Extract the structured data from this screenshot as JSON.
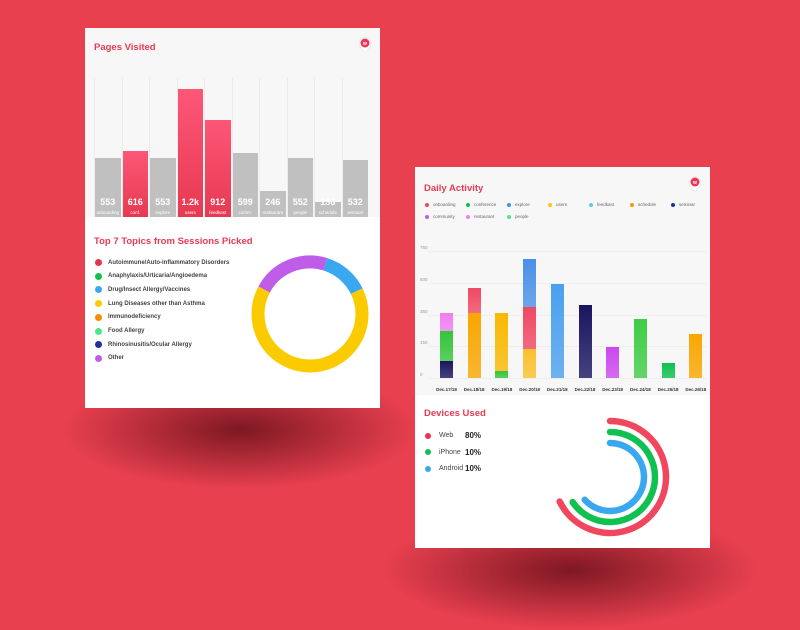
{
  "colors": {
    "accent": "#ea3a53",
    "bg": "#e9404f"
  },
  "pages_visited": {
    "title": "Pages Visited",
    "highlight_color": "#f04862",
    "bars": [
      {
        "value": 553,
        "display": "553",
        "label": "onboarding",
        "hl": false
      },
      {
        "value": 616,
        "display": "616",
        "label": "conf.",
        "hl": true
      },
      {
        "value": 553,
        "display": "553",
        "label": "explore",
        "hl": false
      },
      {
        "value": 1200,
        "display": "1.2k",
        "label": "users",
        "hl": true
      },
      {
        "value": 912,
        "display": "912",
        "label": "feedkast",
        "hl": true
      },
      {
        "value": 599,
        "display": "599",
        "label": "comm.",
        "hl": false
      },
      {
        "value": 246,
        "display": "246",
        "label": "restaurant",
        "hl": false
      },
      {
        "value": 552,
        "display": "552",
        "label": "people",
        "hl": false
      },
      {
        "value": 136,
        "display": "136",
        "label": "schedule",
        "hl": false
      },
      {
        "value": 532,
        "display": "532",
        "label": "seminar",
        "hl": false
      }
    ]
  },
  "topics": {
    "title": "Top 7 Topics from Sessions Picked",
    "items": [
      {
        "label": "Autoimmune/Auto-inflammatory Disorders",
        "color": "#e8344e"
      },
      {
        "label": "Anaphylaxis/Urticaria/Angioedema",
        "color": "#13c04e"
      },
      {
        "label": "Drug/Insect Allergy/Vaccines",
        "color": "#3aa8f0"
      },
      {
        "label": "Lung Diseases other than Asthma",
        "color": "#fbcb00"
      },
      {
        "label": "Immunodeficiency",
        "color": "#f88c00"
      },
      {
        "label": "Food Allergy",
        "color": "#4de58e"
      },
      {
        "label": "Rhinosinusitis/Ocular Allergy",
        "color": "#1f2f9c"
      },
      {
        "label": "Other",
        "color": "#bf5de8"
      }
    ]
  },
  "chart_data": [
    {
      "type": "donut",
      "title": "Top 7 Topics from Sessions Picked",
      "slices": [
        {
          "name": "Other",
          "value": 22,
          "color": "#bf5de8"
        },
        {
          "name": "Drug/Insect Allergy/Vaccines",
          "value": 13,
          "color": "#3aa8f0"
        },
        {
          "name": "Lung Diseases other than Asthma",
          "value": 65,
          "color": "#fbcb00"
        }
      ]
    },
    {
      "type": "bar",
      "stacked": true,
      "title": "Daily Activity",
      "yticks": [
        "0",
        "150",
        "350",
        "500",
        "750"
      ],
      "ylim": [
        0,
        750
      ],
      "categories": [
        "Dec.17/18",
        "Dec.18/18",
        "Dec.19/18",
        "Dec.20/18",
        "Dec.21/18",
        "Dec.22/18",
        "Dec.23/18",
        "Dec.24/18",
        "Dec.25/18",
        "Dec.26/18"
      ],
      "stacks": [
        [
          {
            "s": "seminar",
            "v": 100,
            "c": "#1a1560"
          },
          {
            "s": "conference",
            "v": 177,
            "c": "#34c43a"
          },
          {
            "s": "restaurant",
            "v": 106,
            "c": "#f07ef0"
          }
        ],
        [
          {
            "s": "schedule",
            "v": 384,
            "c": "#f9a600"
          },
          {
            "s": "onboarding",
            "v": 148,
            "c": "#f04862"
          }
        ],
        [
          {
            "s": "conference",
            "v": 41,
            "c": "#34c43a"
          },
          {
            "s": "users",
            "v": 343,
            "c": "#f9b800"
          }
        ],
        [
          {
            "s": "users",
            "v": 171,
            "c": "#fbc02d"
          },
          {
            "s": "onboarding",
            "v": 248,
            "c": "#f04862"
          },
          {
            "s": "explore",
            "v": 283,
            "c": "#4a90e8"
          }
        ],
        [
          {
            "s": "feedkast",
            "v": 555,
            "c": "#4aa0ef"
          }
        ],
        [
          {
            "s": "seminar",
            "v": 431,
            "c": "#1a1560"
          }
        ],
        [
          {
            "s": "community",
            "v": 183,
            "c": "#cc48ee"
          }
        ],
        [
          {
            "s": "conference",
            "v": 348,
            "c": "#40cc45"
          }
        ],
        [
          {
            "s": "conference",
            "v": 89,
            "c": "#0fc050"
          }
        ],
        [
          {
            "s": "schedule",
            "v": 260,
            "c": "#f9a600"
          }
        ]
      ]
    },
    {
      "type": "radial",
      "title": "Devices Used",
      "series": [
        {
          "name": "Web",
          "value": 80,
          "color": "#f0465e"
        },
        {
          "name": "iPhone",
          "value": 10,
          "color": "#10c050"
        },
        {
          "name": "Android",
          "value": 10,
          "color": "#3aa8f0"
        }
      ]
    }
  ],
  "daily": {
    "title": "Daily Activity",
    "legend": [
      {
        "label": "onboarding",
        "color": "#f04862"
      },
      {
        "label": "conference",
        "color": "#10c050"
      },
      {
        "label": "explore",
        "color": "#3a98f0"
      },
      {
        "label": "users",
        "color": "#fbc800"
      },
      {
        "label": "feedkast",
        "color": "#5ac8fa"
      },
      {
        "label": "schedule",
        "color": "#f99a00"
      },
      {
        "label": "seminar",
        "color": "#1f2f9c"
      },
      {
        "label": "community",
        "color": "#bf5de8"
      },
      {
        "label": "restaurant",
        "color": "#f07ef0"
      },
      {
        "label": "people",
        "color": "#4de58e"
      }
    ]
  },
  "devices": {
    "title": "Devices Used",
    "items": [
      {
        "label": "Web",
        "pct": "80%",
        "color": "#e8344e"
      },
      {
        "label": "iPhone",
        "pct": "10%",
        "color": "#10c050"
      },
      {
        "label": "Android",
        "pct": "10%",
        "color": "#3aa8f0"
      }
    ]
  }
}
